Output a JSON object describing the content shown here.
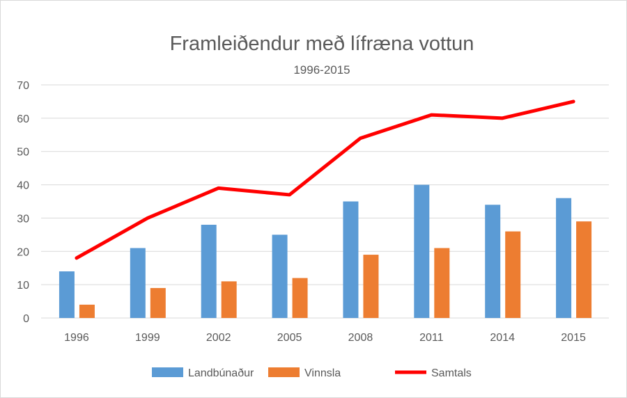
{
  "chart_data": {
    "type": "bar",
    "title": "Framleiðendur með lífræna vottun",
    "subtitle": "1996-2015",
    "xlabel": "",
    "ylabel": "",
    "ylim": [
      0,
      70
    ],
    "yticks": [
      "0",
      "10",
      "20",
      "30",
      "40",
      "50",
      "60",
      "70"
    ],
    "grid": true,
    "legend_position": "bottom",
    "categories": [
      "1996",
      "1999",
      "2002",
      "2005",
      "2008",
      "2011",
      "2014",
      "2015"
    ],
    "series": [
      {
        "name": "Landbúnaður",
        "kind": "bar",
        "color": "#5b9bd5",
        "values": [
          14,
          21,
          28,
          25,
          35,
          40,
          34,
          36
        ]
      },
      {
        "name": "Vinnsla",
        "kind": "bar",
        "color": "#ed7d31",
        "values": [
          4,
          9,
          11,
          12,
          19,
          21,
          26,
          29
        ]
      },
      {
        "name": "Samtals",
        "kind": "line",
        "color": "#ff0000",
        "values": [
          18,
          30,
          39,
          37,
          54,
          61,
          60,
          65
        ]
      }
    ]
  }
}
